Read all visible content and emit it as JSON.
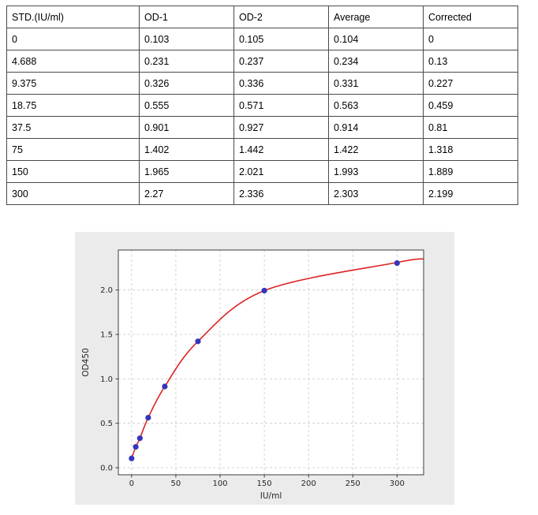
{
  "table": {
    "headers": [
      "STD.(IU/ml)",
      "OD-1",
      "OD-2",
      "Average",
      "Corrected"
    ],
    "rows": [
      [
        "0",
        "0.103",
        "0.105",
        "0.104",
        "0"
      ],
      [
        "4.688",
        "0.231",
        "0.237",
        "0.234",
        "0.13"
      ],
      [
        "9.375",
        "0.326",
        "0.336",
        "0.331",
        "0.227"
      ],
      [
        "18.75",
        "0.555",
        "0.571",
        "0.563",
        "0.459"
      ],
      [
        "37.5",
        "0.901",
        "0.927",
        "0.914",
        "0.81"
      ],
      [
        "75",
        "1.402",
        "1.442",
        "1.422",
        "1.318"
      ],
      [
        "150",
        "1.965",
        "2.021",
        "1.993",
        "1.889"
      ],
      [
        "300",
        "2.27",
        "2.336",
        "2.303",
        "2.199"
      ]
    ]
  },
  "chart_data": {
    "type": "scatter",
    "title": "",
    "xlabel": "IU/ml",
    "ylabel": "OD450",
    "x": [
      0,
      4.688,
      9.375,
      18.75,
      37.5,
      75,
      150,
      300
    ],
    "y": [
      0.104,
      0.234,
      0.331,
      0.563,
      0.914,
      1.422,
      1.993,
      2.303
    ],
    "fit_curve_points_x": [
      0,
      4.688,
      9.375,
      18.75,
      37.5,
      75,
      150,
      300,
      330
    ],
    "fit_curve_points_y": [
      0.104,
      0.234,
      0.331,
      0.563,
      0.914,
      1.422,
      1.993,
      2.31,
      2.35
    ],
    "xticks": [
      0,
      50,
      100,
      150,
      200,
      250,
      300
    ],
    "yticks": [
      0.0,
      0.5,
      1.0,
      1.5,
      2.0
    ],
    "xlim": [
      -15,
      330
    ],
    "ylim": [
      -0.08,
      2.45
    ],
    "grid": true,
    "legend": "none",
    "point_color": "#3434bd",
    "line_color": "#dc2323",
    "figure_bg": "#ebebeb",
    "plot_bg": "#ffffff",
    "axis_color": "#3c3c3c",
    "grid_color": "#c9c9c9"
  }
}
